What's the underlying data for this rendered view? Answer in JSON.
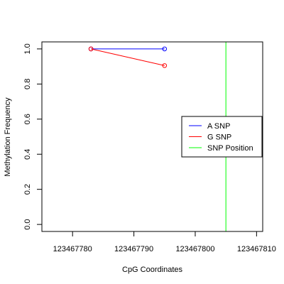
{
  "chart_data": {
    "type": "line",
    "title": "",
    "xlabel": "CpG Coordinates",
    "ylabel": "Methylation Frequency",
    "xlim": [
      123467775,
      123467811
    ],
    "ylim": [
      -0.04,
      1.04
    ],
    "x_ticks": [
      123467780,
      123467790,
      123467800,
      123467810
    ],
    "y_ticks": [
      0.0,
      0.2,
      0.4,
      0.6,
      0.8,
      1.0
    ],
    "x_tick_labels": [
      "123467780",
      "123467790",
      "123467800",
      "123467810"
    ],
    "y_tick_labels": [
      "0.0",
      "0.2",
      "0.4",
      "0.6",
      "0.8",
      "1.0"
    ],
    "grid": false,
    "legend_position": "right",
    "series": [
      {
        "name": "A SNP",
        "color": "#0000ff",
        "x": [
          123467783,
          123467795
        ],
        "y": [
          1.0,
          1.0
        ]
      },
      {
        "name": "G SNP",
        "color": "#ff0000",
        "x": [
          123467783,
          123467795
        ],
        "y": [
          1.0,
          0.905
        ]
      }
    ],
    "vlines": [
      {
        "name": "SNP Position",
        "color": "#00ff00",
        "x": 123467805
      }
    ],
    "legend": [
      {
        "label": "A SNP",
        "color": "#0000ff"
      },
      {
        "label": "G SNP",
        "color": "#ff0000"
      },
      {
        "label": "SNP Position",
        "color": "#00ff00"
      }
    ]
  }
}
